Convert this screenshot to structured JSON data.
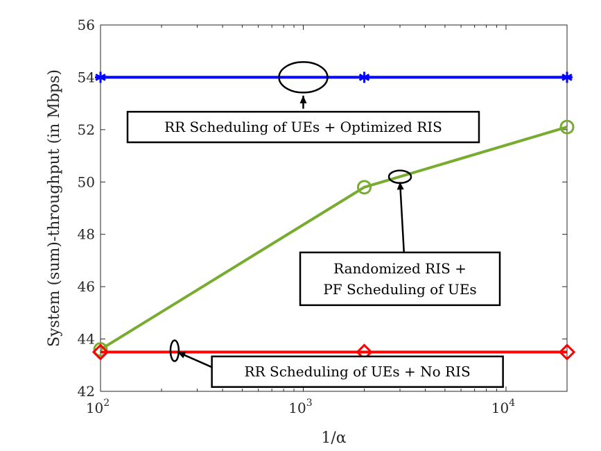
{
  "chart_data": {
    "type": "line",
    "xscale": "log",
    "xlim": [
      100,
      20000
    ],
    "ylim": [
      42,
      56
    ],
    "xlabel": "1/α",
    "ylabel": "System (sum)-throughput (in Mbps)",
    "x_ticks": [
      {
        "base": "10",
        "exp": "2",
        "value": 100
      },
      {
        "base": "10",
        "exp": "3",
        "value": 1000
      },
      {
        "base": "10",
        "exp": "4",
        "value": 10000
      }
    ],
    "y_ticks": [
      "42",
      "44",
      "46",
      "48",
      "50",
      "52",
      "54",
      "56"
    ],
    "grid": false,
    "series": [
      {
        "key": "rr_optimized_ris",
        "color": "#0000ff",
        "marker": "asterisk",
        "x": [
          100,
          2000,
          20000
        ],
        "y": [
          54.0,
          54.0,
          54.0
        ]
      },
      {
        "key": "randomized_ris_pf",
        "color": "#77ac30",
        "marker": "circle",
        "x": [
          100,
          2000,
          20000
        ],
        "y": [
          43.6,
          49.8,
          52.1
        ]
      },
      {
        "key": "rr_no_ris",
        "color": "#ff0000",
        "marker": "diamond",
        "x": [
          100,
          2000,
          20000
        ],
        "y": [
          43.5,
          43.5,
          43.5
        ]
      }
    ],
    "annotations": [
      {
        "key": "rr_optimized_ris",
        "lines": [
          "RR Scheduling of UEs + Optimized RIS"
        ],
        "ellipse_center": [
          1000,
          54.0
        ],
        "ellipse_rx": 35,
        "ellipse_ry": 22,
        "arrow_tip": [
          1000,
          53.3
        ],
        "arrow_tail": [
          1000,
          52.8
        ],
        "box_anchor": [
          1000,
          52.1
        ]
      },
      {
        "key": "randomized_ris_pf",
        "lines": [
          "Randomized RIS +",
          "PF Scheduling of UEs"
        ],
        "ellipse_center": [
          3000,
          50.2
        ],
        "ellipse_rx": 16,
        "ellipse_ry": 9,
        "arrow_tip": [
          3000,
          50.0
        ],
        "arrow_tail": [
          3150,
          47.1
        ],
        "box_anchor": [
          3000,
          46.3
        ]
      },
      {
        "key": "rr_no_ris",
        "lines": [
          "RR Scheduling of UEs + No RIS"
        ],
        "ellipse_center": [
          232,
          43.55
        ],
        "ellipse_rx": 6,
        "ellipse_ry": 15,
        "arrow_tip": [
          240,
          43.5
        ],
        "arrow_tail": [
          360,
          42.9
        ],
        "box_anchor": [
          1850,
          42.75
        ]
      }
    ]
  }
}
